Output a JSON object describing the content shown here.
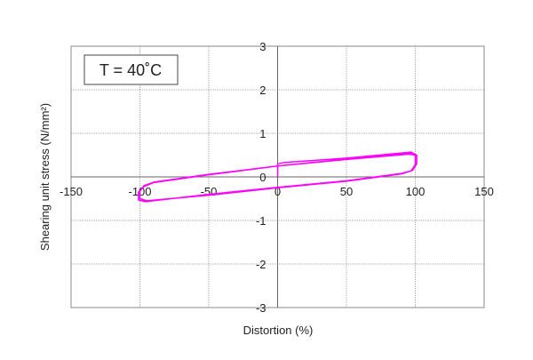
{
  "chart_data": {
    "type": "line",
    "title": "",
    "xlabel": "Distortion (%)",
    "ylabel": "Shearing unit stress (N/mm²)",
    "xlim": [
      -150,
      150
    ],
    "ylim": [
      -3,
      3
    ],
    "xticks": [
      -150,
      -100,
      -50,
      0,
      50,
      100,
      150
    ],
    "yticks": [
      -3,
      -2,
      -1,
      0,
      1,
      2,
      3
    ],
    "grid": true,
    "annotation": "T = 40˚C",
    "series": [
      {
        "color": "#ff00ff",
        "x": [
          0,
          0,
          5,
          50,
          90,
          97,
          100,
          100,
          97,
          90,
          50,
          0,
          -50,
          -95,
          -100,
          -100,
          -97,
          -90,
          -50,
          0,
          50,
          92,
          98,
          101,
          101,
          98,
          90,
          50,
          0,
          -50,
          -96,
          -101,
          -101,
          -97,
          -90,
          -50,
          0,
          50,
          95,
          100
        ],
        "y": [
          0,
          0.3,
          0.33,
          0.43,
          0.55,
          0.57,
          0.5,
          0.28,
          0.14,
          0.07,
          -0.1,
          -0.25,
          -0.42,
          -0.55,
          -0.5,
          -0.33,
          -0.2,
          -0.12,
          0.06,
          0.25,
          0.41,
          0.53,
          0.55,
          0.5,
          0.3,
          0.15,
          0.08,
          -0.09,
          -0.24,
          -0.4,
          -0.57,
          -0.53,
          -0.35,
          -0.22,
          -0.13,
          0.05,
          0.25,
          0.4,
          0.52,
          0.5
        ]
      }
    ]
  }
}
